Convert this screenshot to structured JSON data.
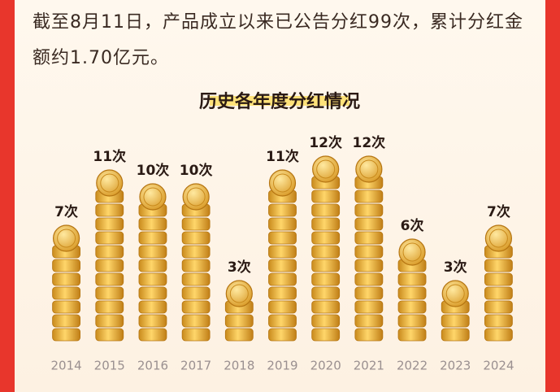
{
  "intro": "截至8月11日，产品成立以来已公告分红99次，累计分红金额约1.70亿元。",
  "chart_data": {
    "type": "bar",
    "title": "历史各年度分红情况",
    "categories": [
      "2014",
      "2015",
      "2016",
      "2017",
      "2018",
      "2019",
      "2020",
      "2021",
      "2022",
      "2023",
      "2024"
    ],
    "values": [
      7,
      11,
      10,
      10,
      3,
      11,
      12,
      12,
      6,
      3,
      7
    ],
    "value_labels": [
      "7次",
      "11次",
      "10次",
      "10次",
      "3次",
      "11次",
      "12次",
      "12次",
      "6次",
      "3次",
      "7次"
    ],
    "color": "#e8b436"
  }
}
